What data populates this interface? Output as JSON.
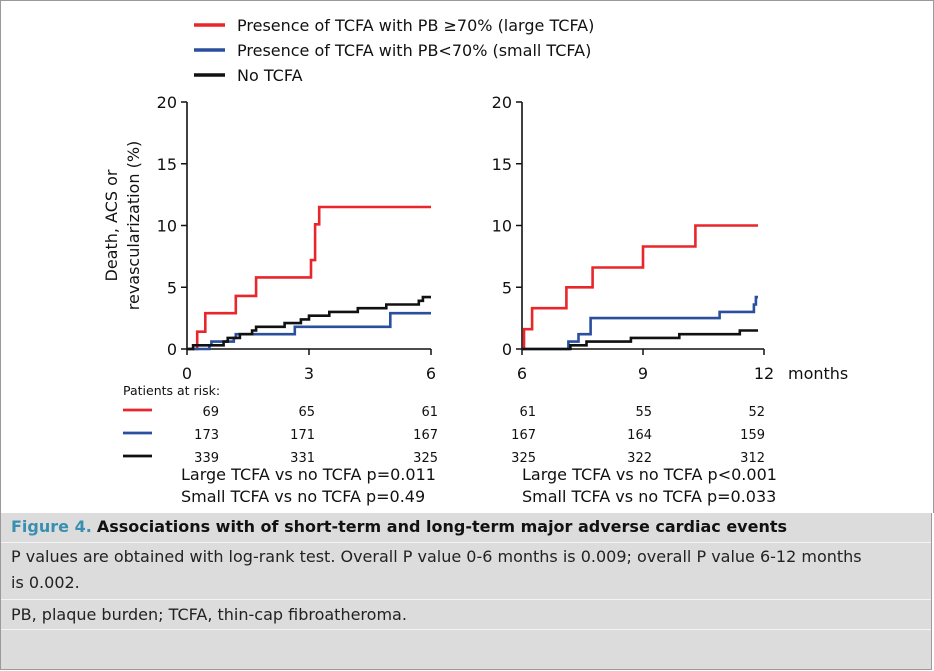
{
  "chart_data": [
    {
      "type": "line",
      "step": true,
      "panel": "left",
      "ylabel": "Death, ACS or revascularization (%)",
      "xlim": [
        0,
        6
      ],
      "ylim": [
        0,
        20
      ],
      "xticks": [
        "0",
        "3",
        "6"
      ],
      "yticks": [
        "0",
        "5",
        "10",
        "15",
        "20"
      ],
      "series": [
        {
          "name": "Presence of TCFA with PB ≥70% (large TCFA)",
          "color": "#e8262b",
          "x": [
            0,
            0.25,
            0.45,
            1.2,
            1.7,
            3.05,
            3.15,
            3.25,
            3.6,
            6.0
          ],
          "y": [
            0,
            1.4,
            2.9,
            4.3,
            5.8,
            7.2,
            10.1,
            11.5,
            11.5,
            11.5
          ]
        },
        {
          "name": "Presence of TCFA with PB<70% (small TCFA)",
          "color": "#2a4f9e",
          "x": [
            0,
            0.4,
            0.55,
            0.6,
            1.1,
            1.15,
            1.2,
            2.6,
            2.65,
            4.95,
            5.0,
            6.0
          ],
          "y": [
            0,
            0,
            0.3,
            0.6,
            0.6,
            0.9,
            1.2,
            1.2,
            1.8,
            1.8,
            2.9,
            2.9
          ]
        },
        {
          "name": "No TCFA",
          "color": "#111111",
          "x": [
            0,
            0.15,
            0.3,
            0.9,
            1.0,
            1.3,
            1.6,
            1.7,
            2.4,
            2.8,
            3.0,
            3.5,
            4.2,
            4.7,
            4.9,
            5.4,
            5.7,
            5.8,
            6.0
          ],
          "y": [
            0,
            0.3,
            0.3,
            0.6,
            0.9,
            1.2,
            1.5,
            1.8,
            2.1,
            2.4,
            2.7,
            3.0,
            3.3,
            3.3,
            3.6,
            3.6,
            3.9,
            4.2,
            4.2
          ]
        }
      ]
    },
    {
      "type": "line",
      "step": true,
      "panel": "right",
      "xlabel": "months",
      "xlim": [
        6,
        12
      ],
      "ylim": [
        0,
        20
      ],
      "xticks": [
        "6",
        "9",
        "12"
      ],
      "yticks": [
        "0",
        "5",
        "10",
        "15",
        "20"
      ],
      "series": [
        {
          "name": "Presence of TCFA with PB ≥70% (large TCFA)",
          "color": "#e8262b",
          "x": [
            6.0,
            6.05,
            6.15,
            6.25,
            7.1,
            7.75,
            9.0,
            10.3,
            11.85
          ],
          "y": [
            0,
            1.6,
            1.6,
            3.3,
            5.0,
            6.6,
            8.3,
            10.0,
            10.0
          ]
        },
        {
          "name": "Presence of TCFA with PB<70% (small TCFA)",
          "color": "#2a4f9e",
          "x": [
            6.0,
            7.1,
            7.15,
            7.3,
            7.4,
            7.7,
            10.9,
            11.75,
            11.8,
            11.85
          ],
          "y": [
            0,
            0,
            0.6,
            0.6,
            1.2,
            2.5,
            3.0,
            3.6,
            4.2,
            4.2
          ]
        },
        {
          "name": "No TCFA",
          "color": "#111111",
          "x": [
            6.0,
            7.2,
            7.6,
            8.7,
            9.9,
            11.4,
            11.85
          ],
          "y": [
            0,
            0.3,
            0.6,
            0.9,
            1.2,
            1.5,
            1.5
          ]
        }
      ]
    }
  ],
  "risk_table": {
    "header": "Patients at risk:",
    "left": [
      [
        "69",
        "65",
        "61"
      ],
      [
        "173",
        "171",
        "167"
      ],
      [
        "339",
        "331",
        "325"
      ]
    ],
    "right": [
      [
        "61",
        "55",
        "52"
      ],
      [
        "167",
        "164",
        "159"
      ],
      [
        "325",
        "322",
        "312"
      ]
    ]
  },
  "pvalues": {
    "left": [
      "Large TCFA vs no TCFA p=0.011",
      "Small TCFA vs no TCFA p=0.49"
    ],
    "right": [
      "Large TCFA vs no TCFA p<0.001",
      "Small TCFA vs no TCFA p=0.033"
    ]
  },
  "caption": {
    "label": "Figure 4.",
    "title": "Associations with of short-term and long-term major adverse cardiac events",
    "note_line1": "P values are obtained with log-rank test. Overall P value 0-6 months is 0.009; overall P value 6-12 months",
    "note_line2": "is 0.002.",
    "abbreviations": "PB, plaque burden; TCFA, thin-cap fibroatheroma."
  },
  "colors": {
    "large": "#e8262b",
    "small": "#2a4f9e",
    "none": "#111111"
  }
}
